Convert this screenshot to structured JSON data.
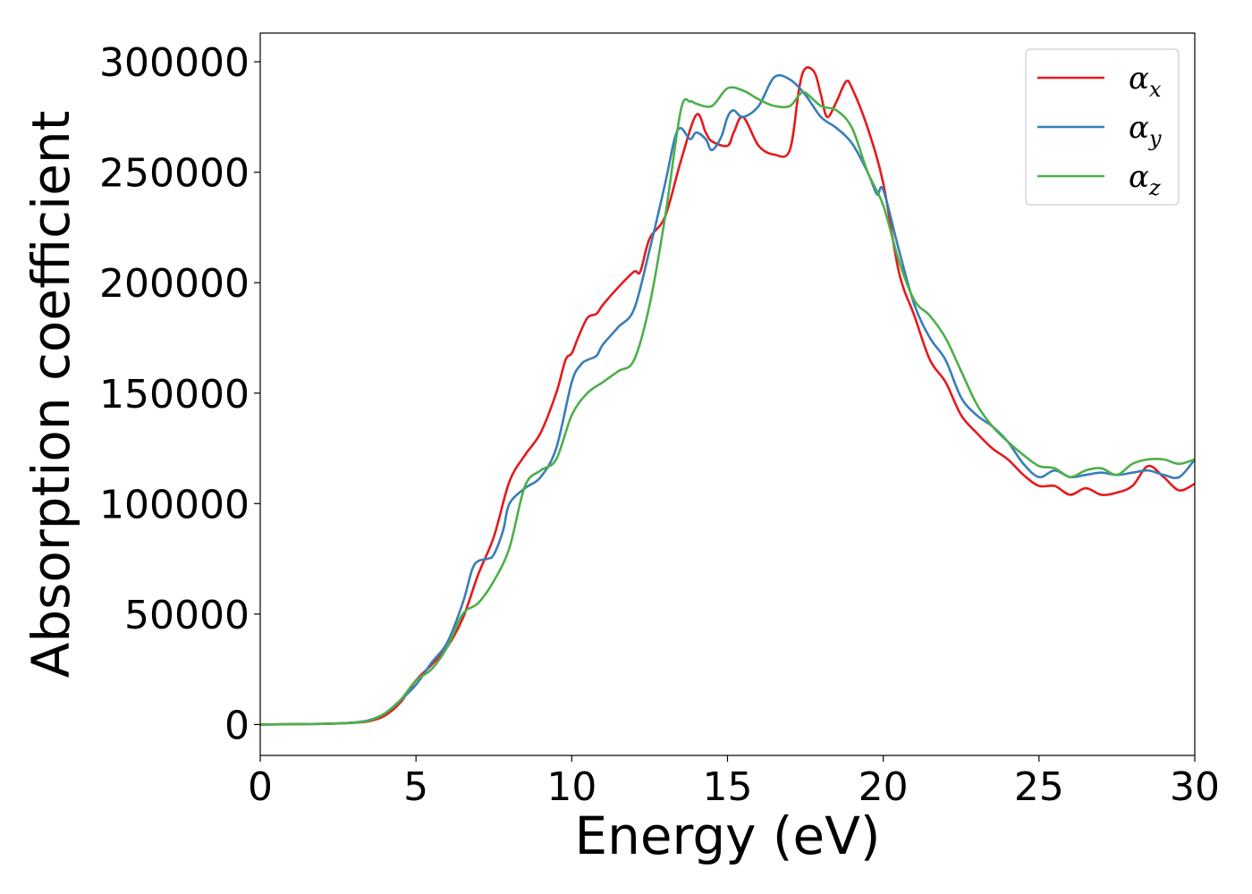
{
  "chart_data": {
    "type": "line",
    "title": "",
    "xlabel": "Energy (eV)",
    "ylabel": "Absorption coefficient",
    "xlim": [
      0,
      30
    ],
    "ylim": [
      -14000,
      313000
    ],
    "xticks": [
      0,
      5,
      10,
      15,
      20,
      25,
      30
    ],
    "xtick_labels": [
      "0",
      "5",
      "10",
      "15",
      "20",
      "25",
      "30"
    ],
    "yticks": [
      0,
      50000,
      100000,
      150000,
      200000,
      250000,
      300000
    ],
    "ytick_labels": [
      "0",
      "50000",
      "100000",
      "150000",
      "200000",
      "250000",
      "300000"
    ],
    "grid": false,
    "legend_position": "top-right",
    "series": [
      {
        "name": "αx",
        "label_base": "α",
        "label_sub": "x",
        "color": "#e41a1c",
        "x": [
          0,
          2,
          3,
          3.5,
          4,
          4.5,
          5,
          5.5,
          6,
          6.5,
          7,
          7.5,
          8,
          8.5,
          9,
          9.5,
          9.8,
          10,
          10.2,
          10.5,
          10.8,
          11,
          11.5,
          12,
          12.2,
          12.5,
          13,
          13.5,
          14,
          14.3,
          14.5,
          15,
          15.2,
          15.5,
          16,
          16.5,
          17,
          17.3,
          17.5,
          17.8,
          18,
          18.2,
          18.5,
          18.8,
          19,
          19.5,
          20,
          20.5,
          21,
          21.5,
          22,
          22.5,
          23,
          23.5,
          24,
          24.5,
          25,
          25.5,
          26,
          26.5,
          27,
          27.5,
          28,
          28.5,
          29,
          29.5,
          30
        ],
        "y": [
          0,
          300,
          800,
          1500,
          4000,
          10000,
          20000,
          27000,
          35000,
          48000,
          68000,
          85000,
          110000,
          122000,
          132000,
          150000,
          165000,
          168000,
          175000,
          184000,
          186000,
          190000,
          198000,
          205000,
          205000,
          220000,
          230000,
          255000,
          276000,
          268000,
          264000,
          262000,
          268000,
          275000,
          262000,
          258000,
          260000,
          288000,
          297000,
          295000,
          285000,
          275000,
          282000,
          291000,
          288000,
          270000,
          245000,
          205000,
          185000,
          165000,
          155000,
          140000,
          132000,
          125000,
          120000,
          113000,
          108000,
          108000,
          104000,
          107000,
          104000,
          105000,
          108000,
          117000,
          112000,
          106000,
          109000
        ]
      },
      {
        "name": "αy",
        "label_base": "α",
        "label_sub": "y",
        "color": "#377eb8",
        "x": [
          0,
          2,
          3,
          3.5,
          4,
          4.5,
          5,
          5.5,
          6,
          6.5,
          6.8,
          7,
          7.3,
          7.5,
          7.8,
          8,
          8.5,
          9,
          9.5,
          10,
          10.3,
          10.5,
          10.8,
          11,
          11.5,
          12,
          12.5,
          13,
          13.3,
          13.5,
          13.8,
          14,
          14.3,
          14.5,
          14.8,
          15,
          15.2,
          15.5,
          16,
          16.5,
          17,
          17.5,
          18,
          18.5,
          19,
          19.5,
          19.8,
          20,
          20.5,
          21,
          21.5,
          22,
          22.5,
          23,
          23.5,
          24,
          24.5,
          25,
          25.5,
          26,
          26.5,
          27,
          27.5,
          28,
          28.5,
          29,
          29.5,
          30
        ],
        "y": [
          0,
          300,
          900,
          2000,
          5000,
          11000,
          18000,
          28000,
          37000,
          55000,
          70000,
          74000,
          75000,
          77000,
          88000,
          100000,
          107000,
          112000,
          125000,
          155000,
          163000,
          165000,
          167000,
          172000,
          180000,
          188000,
          215000,
          245000,
          265000,
          270000,
          265000,
          268000,
          265000,
          260000,
          266000,
          275000,
          278000,
          275000,
          280000,
          293000,
          292000,
          285000,
          275000,
          270000,
          263000,
          250000,
          240000,
          242000,
          215000,
          190000,
          175000,
          165000,
          148000,
          140000,
          135000,
          128000,
          118000,
          112000,
          115000,
          112000,
          113000,
          114000,
          113000,
          114000,
          115000,
          113000,
          112000,
          120000
        ]
      },
      {
        "name": "αz",
        "label_base": "α",
        "label_sub": "z",
        "color": "#4daf4a",
        "x": [
          0,
          2,
          3,
          3.5,
          4,
          4.5,
          5,
          5.5,
          6,
          6.5,
          7,
          7.5,
          8,
          8.5,
          9,
          9.5,
          10,
          10.5,
          11,
          11.5,
          12,
          12.5,
          13,
          13.5,
          13.8,
          14,
          14.5,
          15,
          15.5,
          16,
          16.5,
          17,
          17.3,
          17.5,
          18,
          18.5,
          19,
          19.5,
          20,
          20.5,
          21,
          21.5,
          22,
          22.5,
          23,
          23.5,
          24,
          24.5,
          25,
          25.5,
          26,
          26.5,
          27,
          27.5,
          28,
          28.5,
          29,
          29.5,
          30
        ],
        "y": [
          0,
          300,
          800,
          1800,
          5000,
          11000,
          20000,
          25000,
          35000,
          50000,
          55000,
          65000,
          80000,
          108000,
          115000,
          120000,
          140000,
          150000,
          155000,
          160000,
          165000,
          190000,
          230000,
          278000,
          282000,
          281000,
          280000,
          288000,
          287000,
          283000,
          280000,
          280000,
          285000,
          286000,
          280000,
          278000,
          270000,
          250000,
          235000,
          210000,
          192000,
          185000,
          175000,
          160000,
          145000,
          135000,
          128000,
          122000,
          117000,
          116000,
          112000,
          115000,
          116000,
          113000,
          118000,
          120000,
          120000,
          118000,
          120000
        ]
      }
    ]
  }
}
